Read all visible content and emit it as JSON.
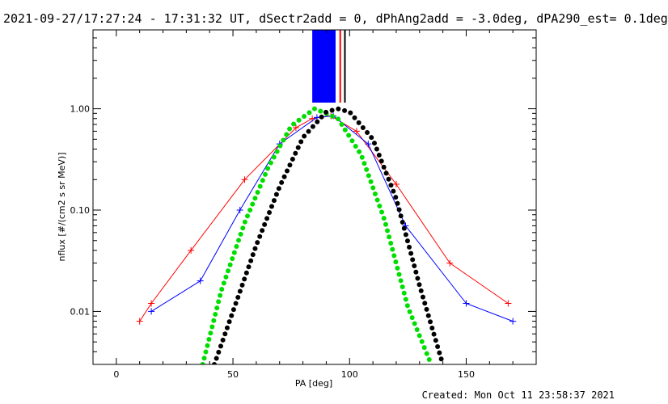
{
  "chart_data": {
    "type": "line",
    "title": "2021-09-27/17:27:24 - 17:31:32 UT, dSectr2add = 0, dPhAng2add = -3.0deg, dPA290_est=  0.1deg",
    "xlabel": "PA [deg]",
    "ylabel": "nflux [#/(cm2 s sr MeV)]",
    "xlim": [
      -10,
      180
    ],
    "ylim": [
      0.003,
      6.0
    ],
    "yscale": "log",
    "x_ticks": [
      0,
      50,
      100,
      150
    ],
    "x_tick_labels": [
      "0",
      "50",
      "100",
      "150"
    ],
    "y_ticks": [
      0.01,
      0.1,
      1.0
    ],
    "y_tick_labels": [
      "0.01",
      "0.10",
      "1.00"
    ],
    "grid": false,
    "colors": {
      "red": "#ff0000",
      "blue": "#0000ff",
      "green": "#00dd00",
      "black": "#000000"
    },
    "series": [
      {
        "color": "red",
        "style": "thin line with plus markers",
        "x": [
          10,
          15,
          32,
          55,
          77,
          84,
          92,
          103,
          120,
          143,
          168
        ],
        "y": [
          0.008,
          0.012,
          0.04,
          0.2,
          0.65,
          0.8,
          0.85,
          0.6,
          0.18,
          0.03,
          0.012
        ]
      },
      {
        "color": "blue",
        "style": "thin line with plus markers",
        "x": [
          15,
          36,
          53,
          70,
          86,
          93,
          108,
          124,
          150,
          170
        ],
        "y": [
          0.01,
          0.02,
          0.1,
          0.45,
          0.82,
          0.85,
          0.45,
          0.07,
          0.012,
          0.008
        ]
      },
      {
        "color": "green",
        "style": "thick dotted line",
        "x": [
          37,
          45,
          55,
          65,
          75,
          85,
          95,
          105,
          115,
          125,
          135
        ],
        "y": [
          0.003,
          0.016,
          0.075,
          0.26,
          0.68,
          1.0,
          0.8,
          0.35,
          0.08,
          0.011,
          0.003
        ]
      },
      {
        "color": "black",
        "style": "thick dotted line",
        "x": [
          42,
          50,
          60,
          70,
          80,
          90,
          95,
          100,
          110,
          120,
          130,
          140
        ],
        "y": [
          0.003,
          0.01,
          0.045,
          0.17,
          0.52,
          0.93,
          1.0,
          0.93,
          0.5,
          0.13,
          0.018,
          0.003
        ]
      }
    ],
    "vertical_markers": [
      {
        "color": "blue",
        "x_start": 84,
        "x_end": 94,
        "y_top": 6.0,
        "y_bottom": 1.15
      },
      {
        "color": "red",
        "x": 96
      },
      {
        "color": "black",
        "x": 98
      }
    ],
    "annotation": "Created: Mon Oct 11 23:58:37 2021"
  }
}
